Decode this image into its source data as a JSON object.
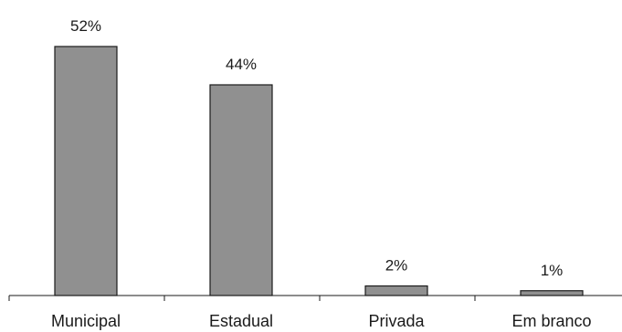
{
  "chart_data": {
    "type": "bar",
    "title": "",
    "xlabel": "",
    "ylabel": "",
    "categories": [
      "Municipal",
      "Estadual",
      "Privada",
      "Em branco"
    ],
    "values": [
      52,
      44,
      2,
      1
    ],
    "value_labels": [
      "52%",
      "44%",
      "2%",
      "1%"
    ],
    "ylim": [
      0,
      52
    ],
    "grid": false,
    "legend": "none",
    "colors": {
      "bar_fill": "#909090",
      "bar_stroke": "#1a1a1a",
      "text": "#1a1a1a"
    }
  }
}
